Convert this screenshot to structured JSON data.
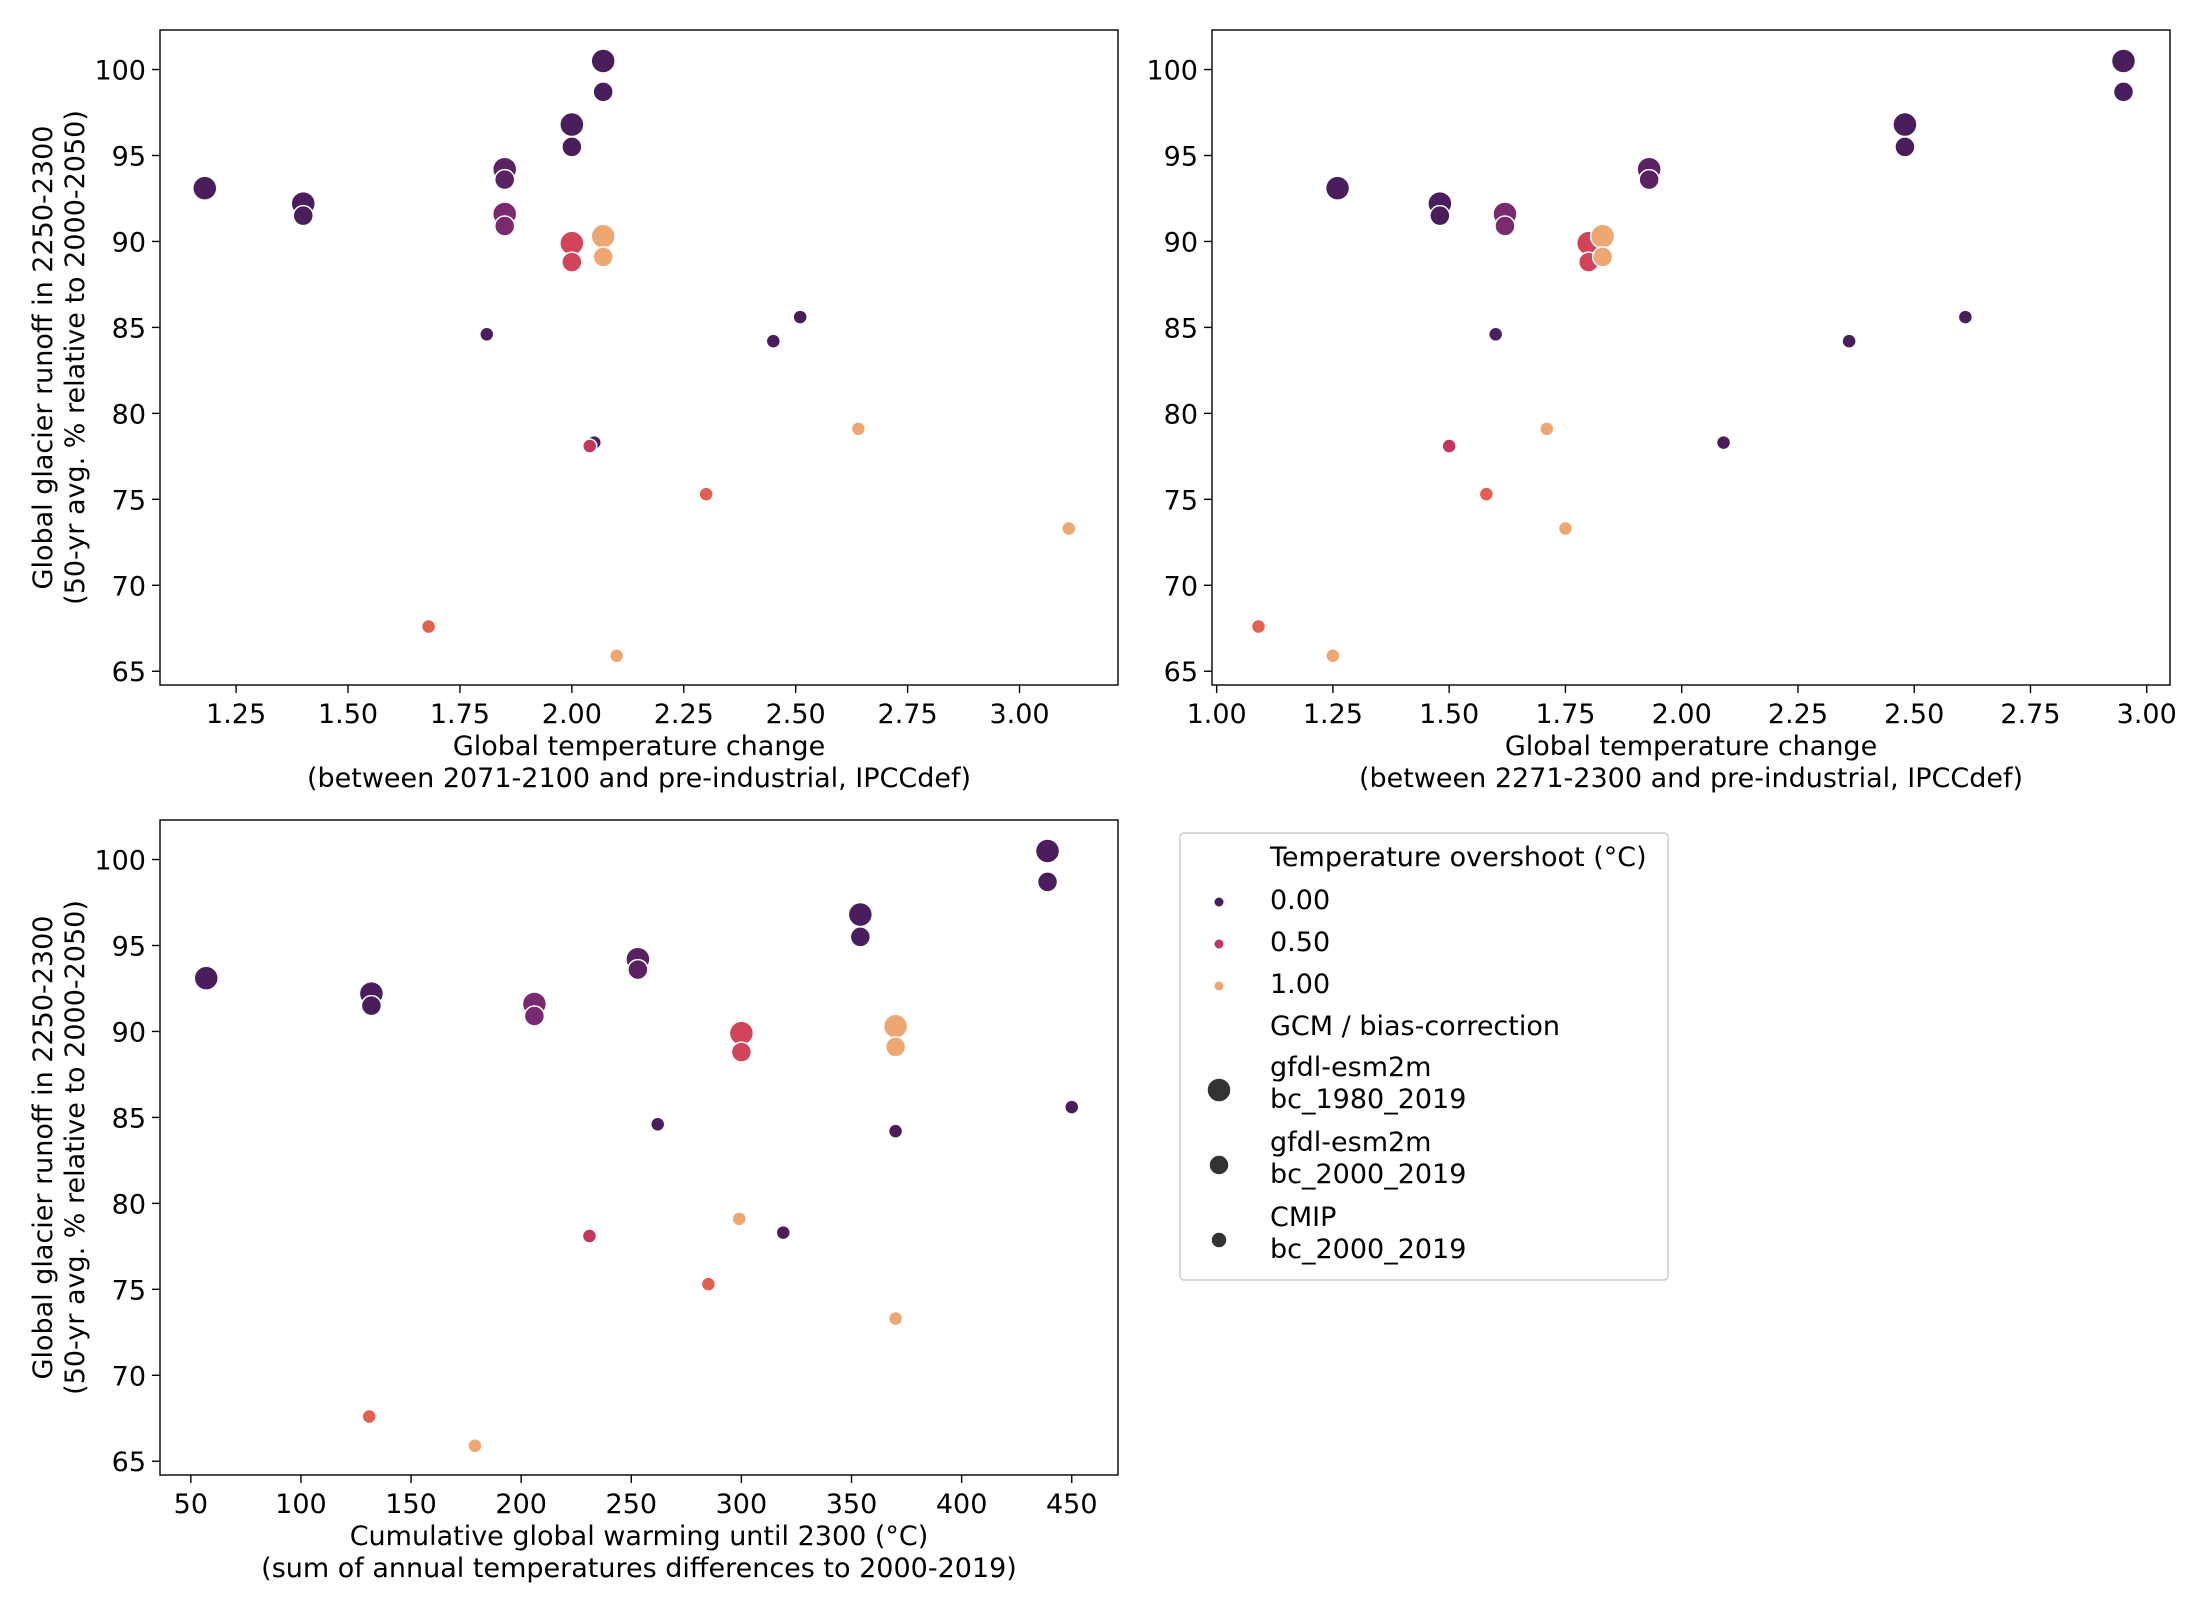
{
  "colors": {
    "overshoot_0": "#4a1d5c",
    "overshoot_0_5": "#cc3d5c",
    "overshoot_0_75": "#e2604f",
    "overshoot_1": "#eda772",
    "mid_purple": "#7a2a6e",
    "frame": "#000000",
    "legend_border": "#cccccc"
  },
  "legend": {
    "hue_title": "Temperature overshoot (°C)",
    "hue_entries": [
      {
        "label": "0.00",
        "color": "#4a1d5c"
      },
      {
        "label": "0.50",
        "color": "#c2365f"
      },
      {
        "label": "1.00",
        "color": "#eda772"
      }
    ],
    "size_title": "GCM / bias-correction",
    "size_entries": [
      {
        "line1": "gfdl-esm2m",
        "line2": "bc_1980_2019",
        "size": "large"
      },
      {
        "line1": "gfdl-esm2m",
        "line2": "bc_2000_2019",
        "size": "medium"
      },
      {
        "line1": "CMIP",
        "line2": "bc_2000_2019",
        "size": "small"
      }
    ]
  },
  "chart_data": [
    {
      "type": "scatter",
      "xlabel_line1": "Global temperature change",
      "xlabel_line2": "(between 2071-2100 and pre-industrial, IPCCdef)",
      "ylabel_line1": "Global glacier runoff in 2250-2300",
      "ylabel_line2": "(50-yr avg. % relative to 2000-2050)",
      "xlim": [
        1.08,
        3.22
      ],
      "ylim": [
        64.2,
        102.3
      ],
      "xticks": [
        1.25,
        1.5,
        1.75,
        2.0,
        2.25,
        2.5,
        2.75,
        3.0
      ],
      "xtick_labels": [
        "1.25",
        "1.50",
        "1.75",
        "2.00",
        "2.25",
        "2.50",
        "2.75",
        "3.00"
      ],
      "yticks": [
        65,
        70,
        75,
        80,
        85,
        90,
        95,
        100
      ],
      "ytick_labels": [
        "65",
        "70",
        "75",
        "80",
        "85",
        "90",
        "95",
        "100"
      ],
      "points": [
        {
          "x": 1.18,
          "y": 93.1,
          "size": "large",
          "overshoot": 0,
          "color": "#4a1d5c"
        },
        {
          "x": 1.4,
          "y": 92.2,
          "size": "large",
          "overshoot": 0,
          "color": "#4a1d5c"
        },
        {
          "x": 1.4,
          "y": 91.5,
          "size": "medium",
          "overshoot": 0,
          "color": "#4a1d5c"
        },
        {
          "x": 1.85,
          "y": 94.2,
          "size": "large",
          "overshoot": 0.1,
          "color": "#5a2163"
        },
        {
          "x": 1.85,
          "y": 93.6,
          "size": "medium",
          "overshoot": 0.1,
          "color": "#5a2163"
        },
        {
          "x": 1.85,
          "y": 91.6,
          "size": "large",
          "overshoot": 0.3,
          "color": "#7a2a6e"
        },
        {
          "x": 1.85,
          "y": 90.9,
          "size": "medium",
          "overshoot": 0.3,
          "color": "#7a2a6e"
        },
        {
          "x": 2.0,
          "y": 96.8,
          "size": "large",
          "overshoot": 0,
          "color": "#4a1d5c"
        },
        {
          "x": 2.0,
          "y": 95.5,
          "size": "medium",
          "overshoot": 0,
          "color": "#4a1d5c"
        },
        {
          "x": 2.0,
          "y": 89.9,
          "size": "large",
          "overshoot": 0.6,
          "color": "#d2445a"
        },
        {
          "x": 2.0,
          "y": 88.8,
          "size": "medium",
          "overshoot": 0.6,
          "color": "#d2445a"
        },
        {
          "x": 2.07,
          "y": 100.5,
          "size": "large",
          "overshoot": 0,
          "color": "#4a1d5c"
        },
        {
          "x": 2.07,
          "y": 98.7,
          "size": "medium",
          "overshoot": 0,
          "color": "#4a1d5c"
        },
        {
          "x": 2.07,
          "y": 90.3,
          "size": "large",
          "overshoot": 1.0,
          "color": "#eda772"
        },
        {
          "x": 2.07,
          "y": 89.1,
          "size": "medium",
          "overshoot": 1.0,
          "color": "#eda772"
        },
        {
          "x": 1.81,
          "y": 84.6,
          "size": "small",
          "overshoot": 0,
          "color": "#4a1d5c"
        },
        {
          "x": 2.45,
          "y": 84.2,
          "size": "small",
          "overshoot": 0,
          "color": "#4a1d5c"
        },
        {
          "x": 2.51,
          "y": 85.6,
          "size": "small",
          "overshoot": 0,
          "color": "#4a1d5c"
        },
        {
          "x": 2.05,
          "y": 78.3,
          "size": "small",
          "overshoot": 0,
          "color": "#4a1d5c"
        },
        {
          "x": 2.04,
          "y": 78.1,
          "size": "small",
          "overshoot": 0.5,
          "color": "#c2365f"
        },
        {
          "x": 2.3,
          "y": 75.3,
          "size": "small",
          "overshoot": 0.75,
          "color": "#e2604f"
        },
        {
          "x": 2.64,
          "y": 79.1,
          "size": "small",
          "overshoot": 1.0,
          "color": "#eda772"
        },
        {
          "x": 3.11,
          "y": 73.3,
          "size": "small",
          "overshoot": 1.0,
          "color": "#eda772"
        },
        {
          "x": 1.68,
          "y": 67.6,
          "size": "small",
          "overshoot": 0.75,
          "color": "#e2604f"
        },
        {
          "x": 2.1,
          "y": 65.9,
          "size": "small",
          "overshoot": 1.0,
          "color": "#eda772"
        }
      ]
    },
    {
      "type": "scatter",
      "xlabel_line1": "Global temperature change",
      "xlabel_line2": "(between 2271-2300 and pre-industrial, IPCCdef)",
      "ylabel_line1": "",
      "ylabel_line2": "",
      "xlim": [
        0.99,
        3.05
      ],
      "ylim": [
        64.2,
        102.3
      ],
      "xticks": [
        1.0,
        1.25,
        1.5,
        1.75,
        2.0,
        2.25,
        2.5,
        2.75,
        3.0
      ],
      "xtick_labels": [
        "1.00",
        "1.25",
        "1.50",
        "1.75",
        "2.00",
        "2.25",
        "2.50",
        "2.75",
        "3.00"
      ],
      "yticks": [
        65,
        70,
        75,
        80,
        85,
        90,
        95,
        100
      ],
      "ytick_labels": [
        "65",
        "70",
        "75",
        "80",
        "85",
        "90",
        "95",
        "100"
      ],
      "points": [
        {
          "x": 1.26,
          "y": 93.1,
          "size": "large",
          "overshoot": 0,
          "color": "#4a1d5c"
        },
        {
          "x": 1.48,
          "y": 92.2,
          "size": "large",
          "overshoot": 0,
          "color": "#4a1d5c"
        },
        {
          "x": 1.48,
          "y": 91.5,
          "size": "medium",
          "overshoot": 0,
          "color": "#4a1d5c"
        },
        {
          "x": 1.93,
          "y": 94.2,
          "size": "large",
          "overshoot": 0.1,
          "color": "#5a2163"
        },
        {
          "x": 1.93,
          "y": 93.6,
          "size": "medium",
          "overshoot": 0.1,
          "color": "#5a2163"
        },
        {
          "x": 1.62,
          "y": 91.6,
          "size": "large",
          "overshoot": 0.3,
          "color": "#7a2a6e"
        },
        {
          "x": 1.62,
          "y": 90.9,
          "size": "medium",
          "overshoot": 0.3,
          "color": "#7a2a6e"
        },
        {
          "x": 1.8,
          "y": 89.9,
          "size": "large",
          "overshoot": 0.6,
          "color": "#d2445a"
        },
        {
          "x": 1.8,
          "y": 88.8,
          "size": "medium",
          "overshoot": 0.6,
          "color": "#d2445a"
        },
        {
          "x": 1.83,
          "y": 90.3,
          "size": "large",
          "overshoot": 1.0,
          "color": "#eda772"
        },
        {
          "x": 1.83,
          "y": 89.1,
          "size": "medium",
          "overshoot": 1.0,
          "color": "#eda772"
        },
        {
          "x": 2.48,
          "y": 96.8,
          "size": "large",
          "overshoot": 0,
          "color": "#4a1d5c"
        },
        {
          "x": 2.48,
          "y": 95.5,
          "size": "medium",
          "overshoot": 0,
          "color": "#4a1d5c"
        },
        {
          "x": 2.95,
          "y": 100.5,
          "size": "large",
          "overshoot": 0,
          "color": "#4a1d5c"
        },
        {
          "x": 2.95,
          "y": 98.7,
          "size": "medium",
          "overshoot": 0,
          "color": "#4a1d5c"
        },
        {
          "x": 1.6,
          "y": 84.6,
          "size": "small",
          "overshoot": 0,
          "color": "#4a1d5c"
        },
        {
          "x": 2.36,
          "y": 84.2,
          "size": "small",
          "overshoot": 0,
          "color": "#4a1d5c"
        },
        {
          "x": 2.61,
          "y": 85.6,
          "size": "small",
          "overshoot": 0,
          "color": "#4a1d5c"
        },
        {
          "x": 2.09,
          "y": 78.3,
          "size": "small",
          "overshoot": 0,
          "color": "#4a1d5c"
        },
        {
          "x": 1.5,
          "y": 78.1,
          "size": "small",
          "overshoot": 0.5,
          "color": "#c2365f"
        },
        {
          "x": 1.58,
          "y": 75.3,
          "size": "small",
          "overshoot": 0.75,
          "color": "#e2604f"
        },
        {
          "x": 1.71,
          "y": 79.1,
          "size": "small",
          "overshoot": 1.0,
          "color": "#eda772"
        },
        {
          "x": 1.75,
          "y": 73.3,
          "size": "small",
          "overshoot": 1.0,
          "color": "#eda772"
        },
        {
          "x": 1.09,
          "y": 67.6,
          "size": "small",
          "overshoot": 0.75,
          "color": "#e2604f"
        },
        {
          "x": 1.25,
          "y": 65.9,
          "size": "small",
          "overshoot": 1.0,
          "color": "#eda772"
        }
      ]
    },
    {
      "type": "scatter",
      "xlabel_line1": "Cumulative global warming until 2300 (°C)",
      "xlabel_line2": "(sum of annual temperatures differences to 2000-2019)",
      "ylabel_line1": "Global glacier runoff in 2250-2300",
      "ylabel_line2": "(50-yr avg. % relative to 2000-2050)",
      "xlim": [
        36,
        471
      ],
      "ylim": [
        64.2,
        102.3
      ],
      "xticks": [
        50,
        100,
        150,
        200,
        250,
        300,
        350,
        400,
        450
      ],
      "xtick_labels": [
        "50",
        "100",
        "150",
        "200",
        "250",
        "300",
        "350",
        "400",
        "450"
      ],
      "yticks": [
        65,
        70,
        75,
        80,
        85,
        90,
        95,
        100
      ],
      "ytick_labels": [
        "65",
        "70",
        "75",
        "80",
        "85",
        "90",
        "95",
        "100"
      ],
      "points": [
        {
          "x": 57,
          "y": 93.1,
          "size": "large",
          "overshoot": 0,
          "color": "#4a1d5c"
        },
        {
          "x": 132,
          "y": 92.2,
          "size": "large",
          "overshoot": 0,
          "color": "#4a1d5c"
        },
        {
          "x": 132,
          "y": 91.5,
          "size": "medium",
          "overshoot": 0,
          "color": "#4a1d5c"
        },
        {
          "x": 206,
          "y": 91.6,
          "size": "large",
          "overshoot": 0.3,
          "color": "#7a2a6e"
        },
        {
          "x": 206,
          "y": 90.9,
          "size": "medium",
          "overshoot": 0.3,
          "color": "#7a2a6e"
        },
        {
          "x": 253,
          "y": 94.2,
          "size": "large",
          "overshoot": 0.1,
          "color": "#5a2163"
        },
        {
          "x": 253,
          "y": 93.6,
          "size": "medium",
          "overshoot": 0.1,
          "color": "#5a2163"
        },
        {
          "x": 300,
          "y": 89.9,
          "size": "large",
          "overshoot": 0.6,
          "color": "#d2445a"
        },
        {
          "x": 300,
          "y": 88.8,
          "size": "medium",
          "overshoot": 0.6,
          "color": "#d2445a"
        },
        {
          "x": 354,
          "y": 96.8,
          "size": "large",
          "overshoot": 0,
          "color": "#4a1d5c"
        },
        {
          "x": 354,
          "y": 95.5,
          "size": "medium",
          "overshoot": 0,
          "color": "#4a1d5c"
        },
        {
          "x": 370,
          "y": 90.3,
          "size": "large",
          "overshoot": 1.0,
          "color": "#eda772"
        },
        {
          "x": 370,
          "y": 89.1,
          "size": "medium",
          "overshoot": 1.0,
          "color": "#eda772"
        },
        {
          "x": 439,
          "y": 100.5,
          "size": "large",
          "overshoot": 0,
          "color": "#4a1d5c"
        },
        {
          "x": 439,
          "y": 98.7,
          "size": "medium",
          "overshoot": 0,
          "color": "#4a1d5c"
        },
        {
          "x": 262,
          "y": 84.6,
          "size": "small",
          "overshoot": 0,
          "color": "#4a1d5c"
        },
        {
          "x": 370,
          "y": 84.2,
          "size": "small",
          "overshoot": 0,
          "color": "#4a1d5c"
        },
        {
          "x": 450,
          "y": 85.6,
          "size": "small",
          "overshoot": 0,
          "color": "#4a1d5c"
        },
        {
          "x": 319,
          "y": 78.3,
          "size": "small",
          "overshoot": 0,
          "color": "#4a1d5c"
        },
        {
          "x": 231,
          "y": 78.1,
          "size": "small",
          "overshoot": 0.5,
          "color": "#c2365f"
        },
        {
          "x": 285,
          "y": 75.3,
          "size": "small",
          "overshoot": 0.75,
          "color": "#e2604f"
        },
        {
          "x": 299,
          "y": 79.1,
          "size": "small",
          "overshoot": 1.0,
          "color": "#eda772"
        },
        {
          "x": 370,
          "y": 73.3,
          "size": "small",
          "overshoot": 1.0,
          "color": "#eda772"
        },
        {
          "x": 131,
          "y": 67.6,
          "size": "small",
          "overshoot": 0.75,
          "color": "#e2604f"
        },
        {
          "x": 179,
          "y": 65.9,
          "size": "small",
          "overshoot": 1.0,
          "color": "#eda772"
        }
      ]
    }
  ]
}
